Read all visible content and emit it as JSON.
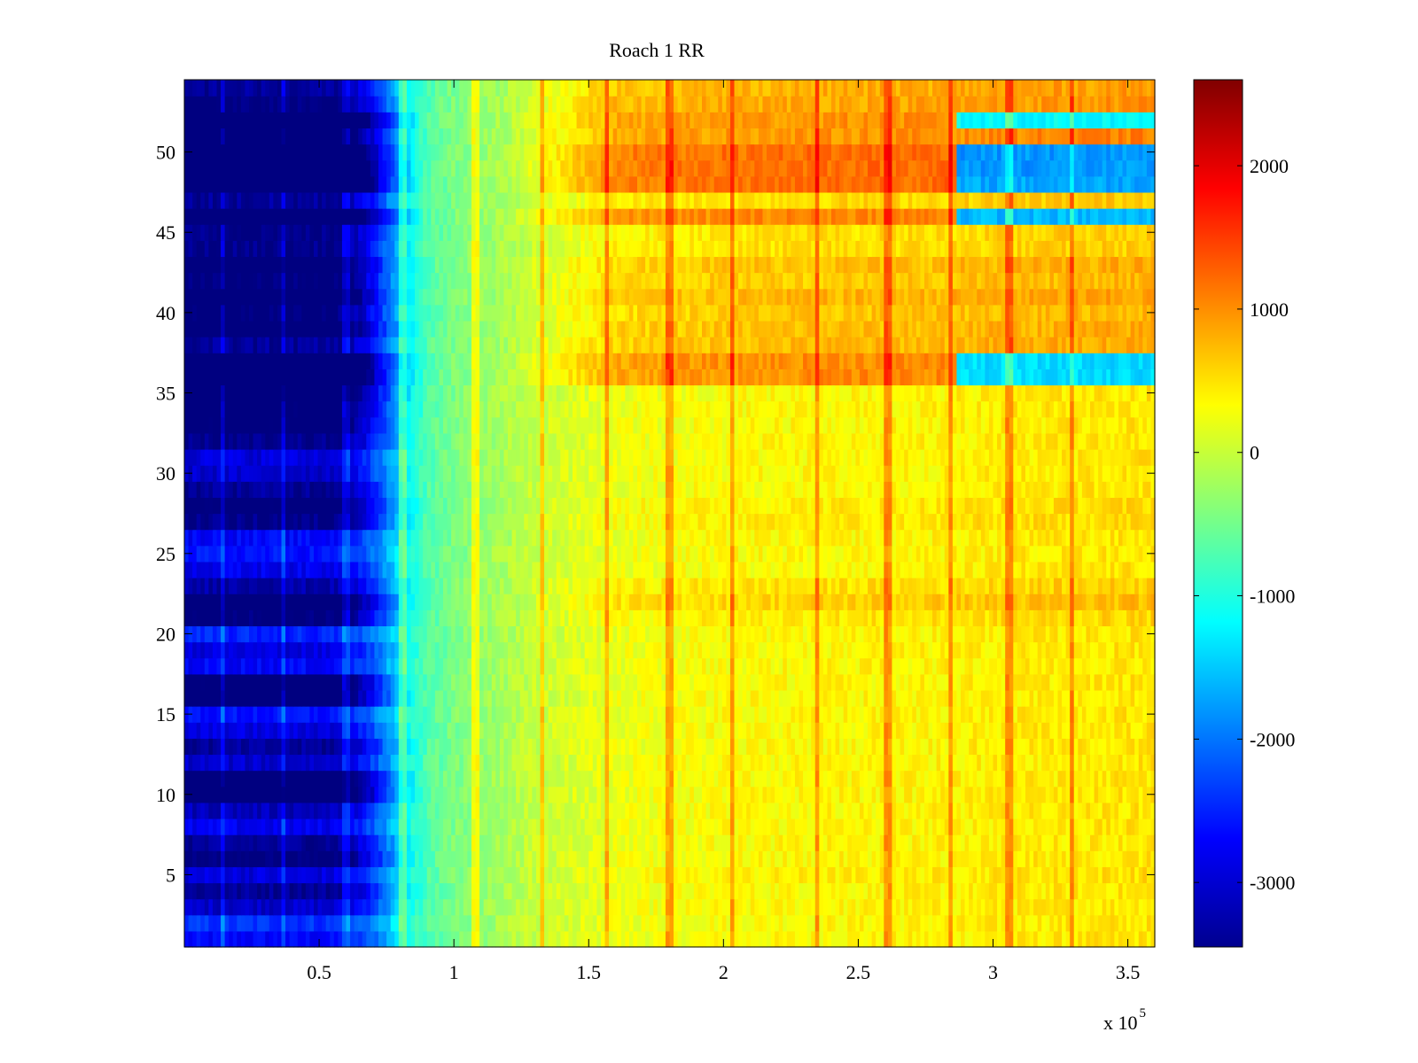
{
  "figure": {
    "title": "Roach 1 RR",
    "x_exponent_label": "x 10",
    "x_exponent_power": "5"
  },
  "chart_data": {
    "type": "heatmap",
    "title": "Roach 1 RR",
    "xlabel": "",
    "ylabel": "",
    "x_scale_note": "x 10^5",
    "xlim": [
      0,
      360000
    ],
    "ylim": [
      0.5,
      54.5
    ],
    "x_ticks": [
      50000,
      100000,
      150000,
      200000,
      250000,
      300000,
      350000
    ],
    "x_tick_labels": [
      "0.5",
      "1",
      "1.5",
      "2",
      "2.5",
      "3",
      "3.5"
    ],
    "y_ticks": [
      5,
      10,
      15,
      20,
      25,
      30,
      35,
      40,
      45,
      50
    ],
    "y_tick_labels": [
      "5",
      "10",
      "15",
      "20",
      "25",
      "30",
      "35",
      "40",
      "45",
      "50"
    ],
    "colormap": "jet",
    "clim": [
      -3450,
      2600
    ],
    "colorbar": {
      "ticks": [
        -3000,
        -2000,
        -1000,
        0,
        1000,
        2000
      ],
      "tick_labels": [
        "-3000",
        "-2000",
        "-1000",
        "0",
        "1000",
        "2000"
      ]
    },
    "rows": 54,
    "time_profile": {
      "x": [
        0,
        55000,
        70000,
        82000,
        100000,
        130000,
        160000,
        200000,
        240000,
        280000,
        290000,
        300000,
        360000
      ],
      "baseline": [
        -2000,
        -2000,
        -1600,
        -900,
        -450,
        0,
        220,
        320,
        360,
        380,
        400,
        420,
        480
      ]
    },
    "row_offsets_early": [
      -700,
      -400,
      -1000,
      -1300,
      -900,
      -1500,
      -1300,
      -800,
      -1100,
      -1900,
      -1900,
      -1000,
      -1300,
      -900,
      -600,
      -1600,
      -1600,
      -700,
      -900,
      -500,
      -1500,
      -1700,
      -1200,
      -800,
      -600,
      -700,
      -1400,
      -1600,
      -1300,
      -1000,
      -900,
      -1400,
      -1600,
      -1600,
      -1800,
      -2200,
      -2200,
      -1300,
      -1700,
      -1500,
      -1800,
      -1500,
      -1700,
      -1400,
      -1400,
      -2300,
      -1300,
      -2300,
      -2300,
      -2300,
      -1800,
      -2300,
      -1500,
      -1300
    ],
    "row_offsets_late": [
      0,
      0,
      0,
      0,
      50,
      0,
      0,
      0,
      0,
      0,
      0,
      0,
      0,
      0,
      0,
      0,
      0,
      0,
      0,
      0,
      100,
      250,
      150,
      0,
      0,
      0,
      80,
      80,
      0,
      0,
      0,
      0,
      0,
      0,
      0,
      650,
      650,
      380,
      350,
      300,
      400,
      300,
      350,
      150,
      150,
      700,
      200,
      850,
      850,
      850,
      600,
      600,
      500,
      450
    ],
    "late_dropout": {
      "x_start": 286000,
      "rows": [
        36,
        37,
        46,
        48,
        49,
        50,
        52
      ],
      "values": [
        -1400,
        -1400,
        -1600,
        -1700,
        -1800,
        -1800,
        -1200
      ]
    },
    "streak_columns_x": [
      14500,
      37000,
      60000,
      81000,
      108000,
      133000,
      157000,
      180000,
      203000,
      235000,
      261000,
      284000,
      306000,
      329000
    ],
    "streak_strength": 600
  }
}
